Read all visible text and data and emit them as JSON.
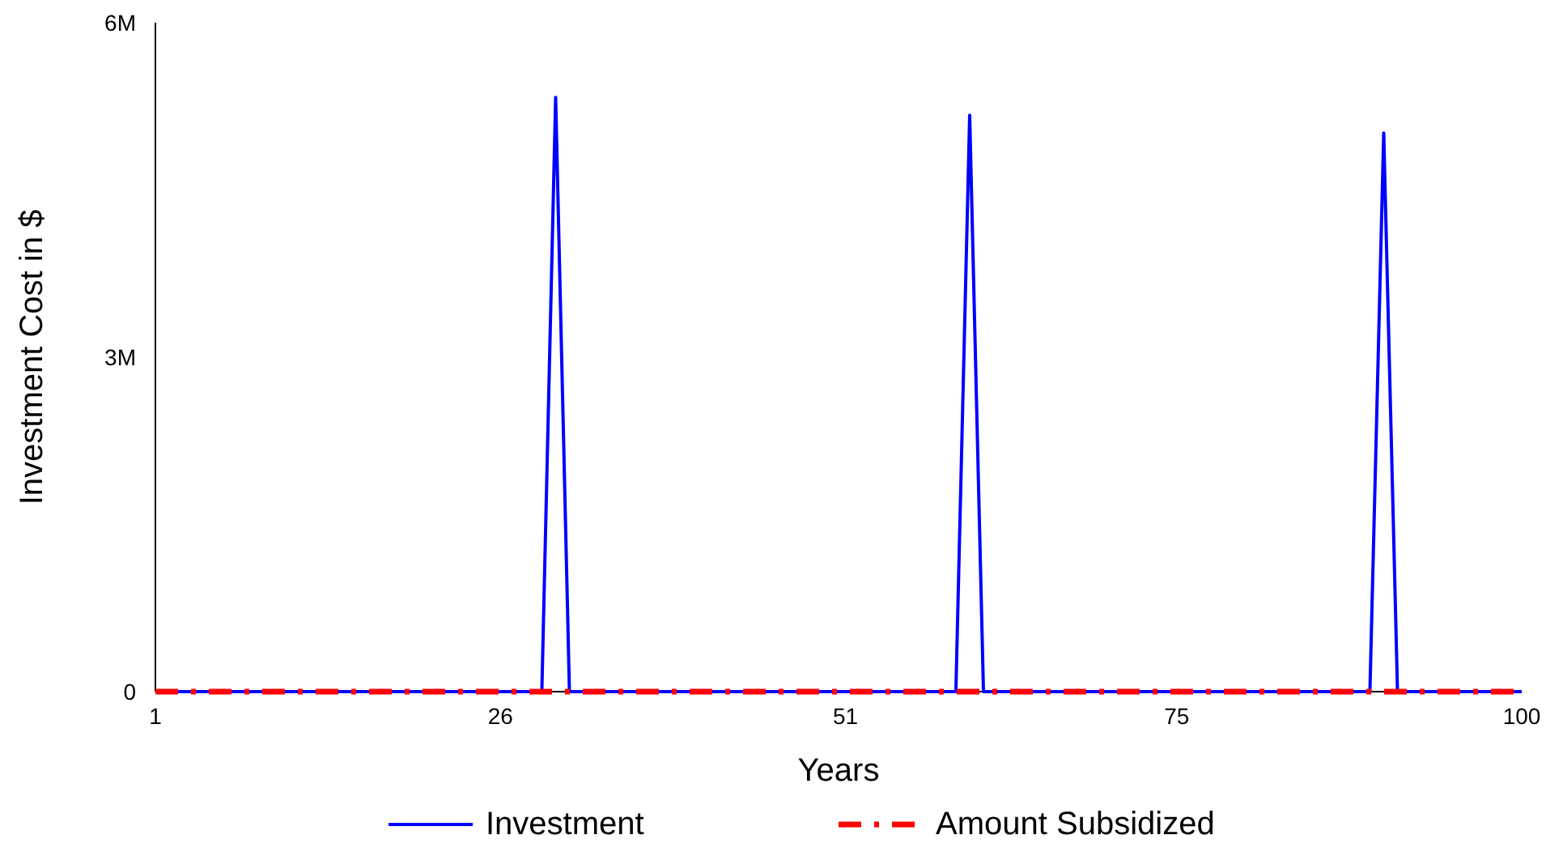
{
  "chart_data": {
    "type": "line",
    "xlabel": "Years",
    "ylabel": "Investment Cost in $",
    "x": [
      1,
      2,
      3,
      4,
      5,
      6,
      7,
      8,
      9,
      10,
      11,
      12,
      13,
      14,
      15,
      16,
      17,
      18,
      19,
      20,
      21,
      22,
      23,
      24,
      25,
      26,
      27,
      28,
      29,
      30,
      31,
      32,
      33,
      34,
      35,
      36,
      37,
      38,
      39,
      40,
      41,
      42,
      43,
      44,
      45,
      46,
      47,
      48,
      49,
      50,
      51,
      52,
      53,
      54,
      55,
      56,
      57,
      58,
      59,
      60,
      61,
      62,
      63,
      64,
      65,
      66,
      67,
      68,
      69,
      70,
      71,
      72,
      73,
      74,
      75,
      76,
      77,
      78,
      79,
      80,
      81,
      82,
      83,
      84,
      85,
      86,
      87,
      88,
      89,
      90,
      91,
      92,
      93,
      94,
      95,
      96,
      97,
      98,
      99,
      100
    ],
    "series": [
      {
        "name": "Investment",
        "color": "#0000ff",
        "line_style": "solid",
        "values": [
          0,
          0,
          0,
          0,
          0,
          0,
          0,
          0,
          0,
          0,
          0,
          0,
          0,
          0,
          0,
          0,
          0,
          0,
          0,
          0,
          0,
          0,
          0,
          0,
          0,
          0,
          0,
          0,
          0,
          5330000,
          0,
          0,
          0,
          0,
          0,
          0,
          0,
          0,
          0,
          0,
          0,
          0,
          0,
          0,
          0,
          0,
          0,
          0,
          0,
          0,
          0,
          0,
          0,
          0,
          0,
          0,
          0,
          0,
          0,
          5170000,
          0,
          0,
          0,
          0,
          0,
          0,
          0,
          0,
          0,
          0,
          0,
          0,
          0,
          0,
          0,
          0,
          0,
          0,
          0,
          0,
          0,
          0,
          0,
          0,
          0,
          0,
          0,
          0,
          0,
          5010000,
          0,
          0,
          0,
          0,
          0,
          0,
          0,
          0,
          0,
          0
        ]
      },
      {
        "name": "Amount Subsidized",
        "color": "#ff0000",
        "line_style": "dashed",
        "values": [
          0,
          0,
          0,
          0,
          0,
          0,
          0,
          0,
          0,
          0,
          0,
          0,
          0,
          0,
          0,
          0,
          0,
          0,
          0,
          0,
          0,
          0,
          0,
          0,
          0,
          0,
          0,
          0,
          0,
          0,
          0,
          0,
          0,
          0,
          0,
          0,
          0,
          0,
          0,
          0,
          0,
          0,
          0,
          0,
          0,
          0,
          0,
          0,
          0,
          0,
          0,
          0,
          0,
          0,
          0,
          0,
          0,
          0,
          0,
          0,
          0,
          0,
          0,
          0,
          0,
          0,
          0,
          0,
          0,
          0,
          0,
          0,
          0,
          0,
          0,
          0,
          0,
          0,
          0,
          0,
          0,
          0,
          0,
          0,
          0,
          0,
          0,
          0,
          0,
          0,
          0,
          0,
          0,
          0,
          0,
          0,
          0,
          0,
          0,
          0
        ]
      }
    ],
    "xlim": [
      1,
      100
    ],
    "xticks": [
      1,
      26,
      51,
      75,
      100
    ],
    "ylim": [
      0,
      6000000
    ],
    "yticks": [
      {
        "value": 0,
        "label": "0"
      },
      {
        "value": 3000000,
        "label": "3M"
      },
      {
        "value": 6000000,
        "label": "6M"
      }
    ],
    "grid": false,
    "legend": "bottom",
    "marker": "none"
  }
}
